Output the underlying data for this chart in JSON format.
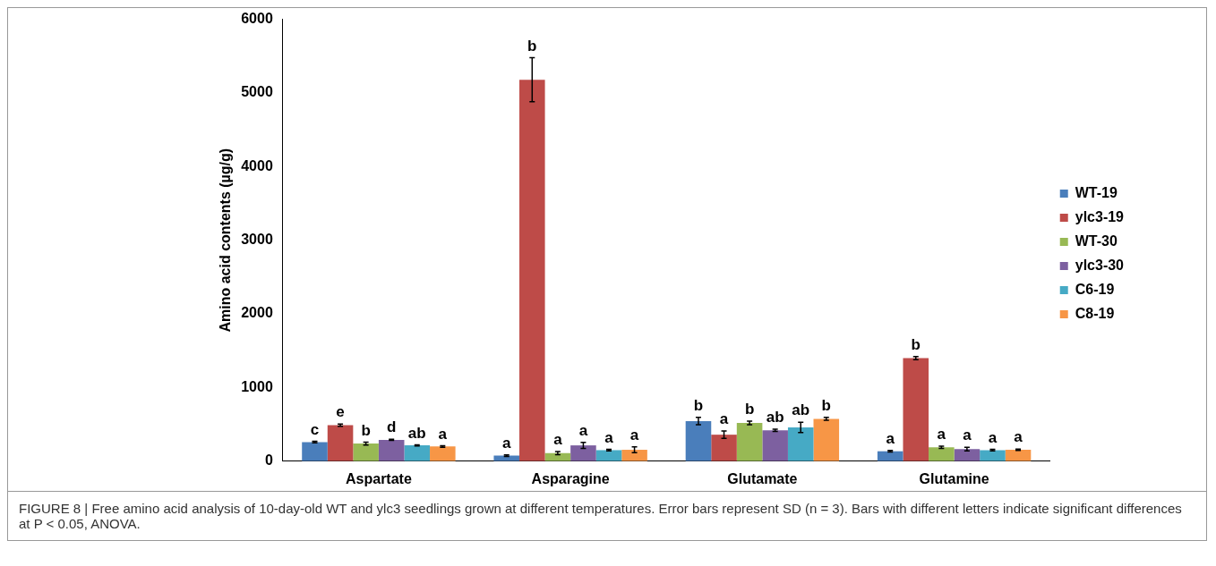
{
  "chart_data": {
    "type": "bar",
    "ylabel": "Amino acid contents (µg/g)",
    "categories": [
      "Aspartate",
      "Asparagine",
      "Glutamate",
      "Glutamine"
    ],
    "series": [
      {
        "name": "WT-19",
        "color": "#4a7ebb",
        "values": [
          260,
          75,
          545,
          135
        ],
        "errors": [
          10,
          10,
          50,
          10
        ],
        "value_labels": [
          "c",
          "a",
          "b",
          "a"
        ]
      },
      {
        "name": "ylc3-19",
        "color": "#be4b48",
        "values": [
          490,
          5180,
          360,
          1400
        ],
        "errors": [
          15,
          300,
          50,
          20
        ],
        "value_labels": [
          "e",
          "b",
          "a",
          "b"
        ]
      },
      {
        "name": "WT-30",
        "color": "#98b954",
        "values": [
          240,
          110,
          520,
          190
        ],
        "errors": [
          20,
          20,
          25,
          15
        ],
        "value_labels": [
          "b",
          "a",
          "b",
          "a"
        ]
      },
      {
        "name": "ylc3-30",
        "color": "#7d60a0",
        "values": [
          290,
          215,
          420,
          165
        ],
        "errors": [
          8,
          40,
          15,
          25
        ],
        "value_labels": [
          "d",
          "a",
          "ab",
          "a"
        ]
      },
      {
        "name": "C6-19",
        "color": "#46aac5",
        "values": [
          215,
          150,
          460,
          150
        ],
        "errors": [
          8,
          10,
          70,
          10
        ],
        "value_labels": [
          "ab",
          "a",
          "ab",
          "a"
        ]
      },
      {
        "name": "C8-19",
        "color": "#f79646",
        "values": [
          200,
          155,
          575,
          155
        ],
        "errors": [
          10,
          40,
          20,
          10
        ],
        "value_labels": [
          "a",
          "a",
          "b",
          "a"
        ]
      }
    ],
    "ylim": [
      0,
      6000
    ],
    "yticks": [
      0,
      1000,
      2000,
      3000,
      4000,
      5000,
      6000
    ],
    "grid": false,
    "legend": "right",
    "annotations": [
      "FIGURE 8 | Free amino acid analysis of 10-day-old WT and ylc3 seedlings grown at different temperatures. Error bars represent SD (n = 3). Bars with different letters indicate significant differences at P < 0.05, ANOVA."
    ]
  }
}
